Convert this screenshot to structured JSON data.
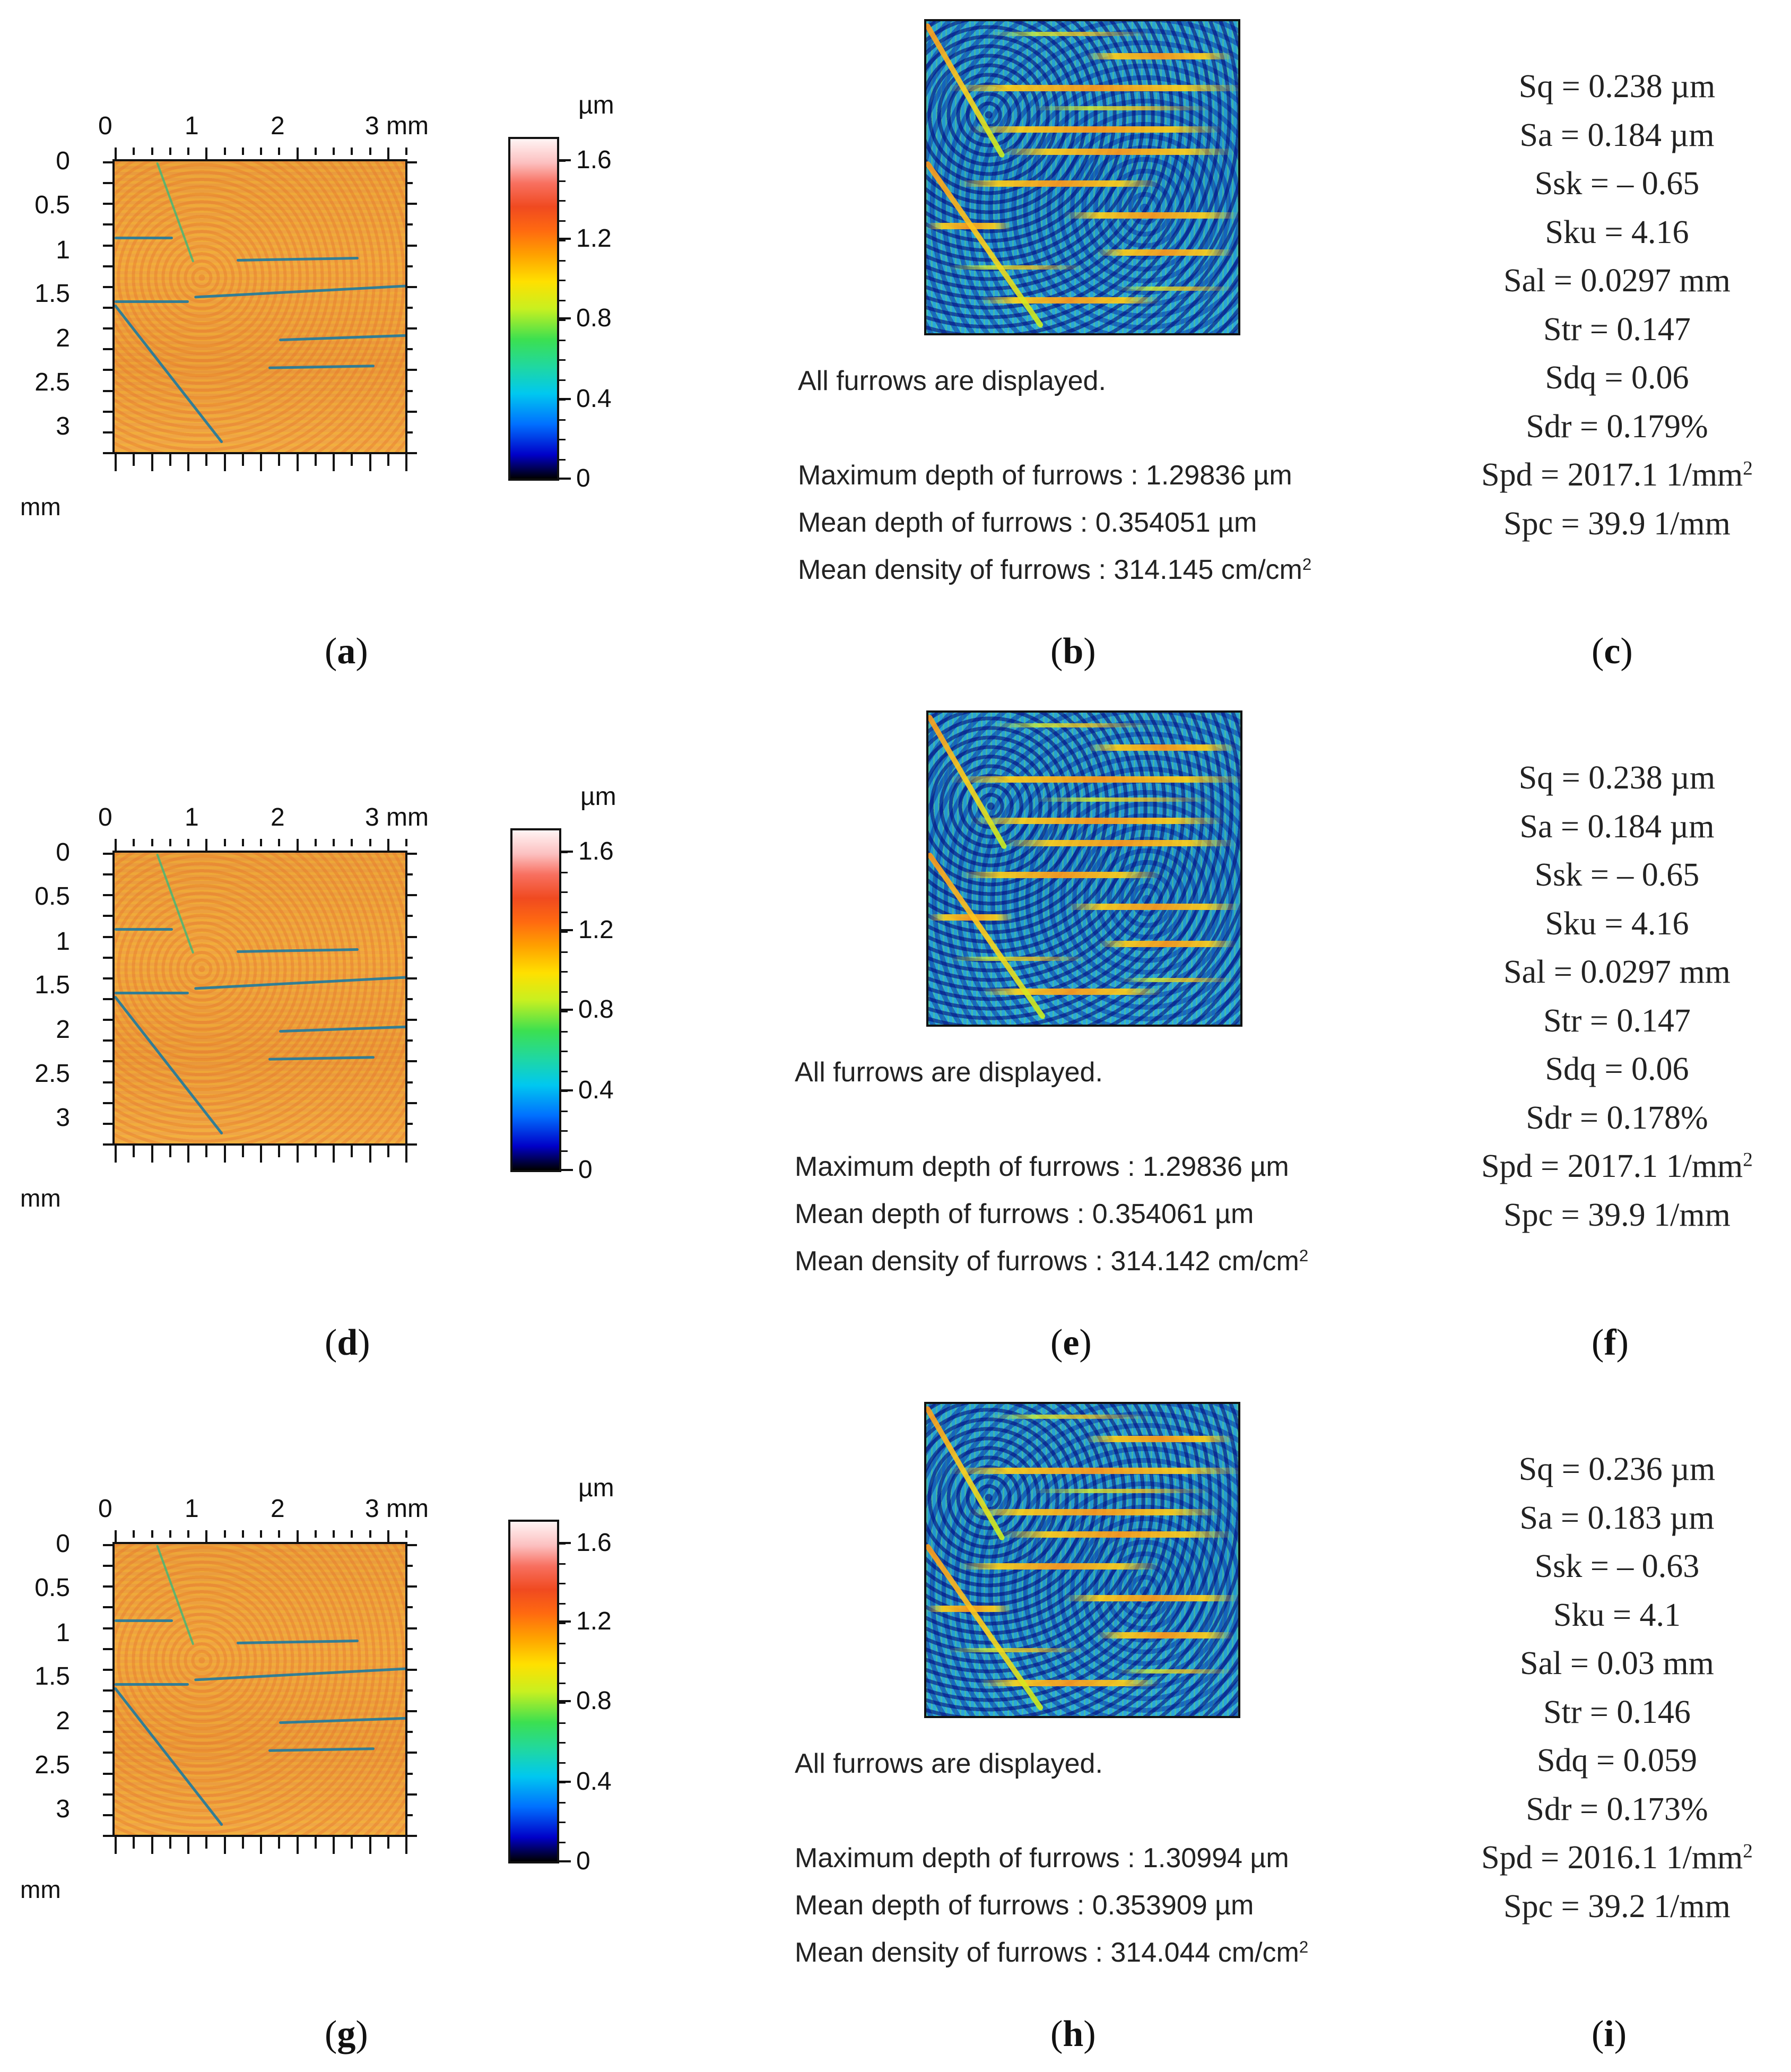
{
  "maps": [
    {
      "x_ticks": [
        "0",
        "1",
        "2",
        "3 mm"
      ],
      "y_ticks": [
        "0",
        "0.5",
        "1",
        "1.5",
        "2",
        "2.5",
        "3"
      ],
      "y_unit": "mm"
    },
    {
      "x_ticks": [
        "0",
        "1",
        "2",
        "3 mm"
      ],
      "y_ticks": [
        "0",
        "0.5",
        "1",
        "1.5",
        "2",
        "2.5",
        "3"
      ],
      "y_unit": "mm"
    },
    {
      "x_ticks": [
        "0",
        "1",
        "2",
        "3 mm"
      ],
      "y_ticks": [
        "0",
        "0.5",
        "1",
        "1.5",
        "2",
        "2.5",
        "3"
      ],
      "y_unit": "mm"
    }
  ],
  "colorbars": [
    {
      "unit": "µm",
      "ticks": [
        "1.6",
        "1.2",
        "0.8",
        "0.4",
        "0"
      ]
    },
    {
      "unit": "µm",
      "ticks": [
        "1.6",
        "1.2",
        "0.8",
        "0.4",
        "0"
      ]
    },
    {
      "unit": "µm",
      "ticks": [
        "1.6",
        "1.2",
        "0.8",
        "0.4",
        "0"
      ]
    }
  ],
  "furrows": [
    {
      "displayed": "All furrows are displayed.",
      "max_depth": "Maximum depth of furrows : 1.29836 µm",
      "mean_depth": "Mean depth of furrows : 0.354051 µm",
      "mean_density": "Mean density of furrows : 314.145 cm/cm",
      "density_sup": "2"
    },
    {
      "displayed": "All furrows are displayed.",
      "max_depth": "Maximum depth of furrows : 1.29836 µm",
      "mean_depth": "Mean depth of furrows : 0.354061 µm",
      "mean_density": "Mean density of furrows : 314.142 cm/cm",
      "density_sup": "2"
    },
    {
      "displayed": "All furrows are displayed.",
      "max_depth": "Maximum depth of furrows : 1.30994 µm",
      "mean_depth": "Mean depth of furrows : 0.353909 µm",
      "mean_density": "Mean density of furrows : 314.044 cm/cm",
      "density_sup": "2"
    }
  ],
  "params": [
    {
      "Sq": "Sq = 0.238 µm",
      "Sa": "Sa = 0.184 µm",
      "Ssk": "Ssk = – 0.65",
      "Sku": "Sku = 4.16",
      "Sal": "Sal = 0.0297 mm",
      "Str": "Str = 0.147",
      "Sdq": "Sdq = 0.06",
      "Sdr": "Sdr = 0.179%",
      "Spd": "Spd = 2017.1 1/mm",
      "Spd_sup": "2",
      "Spc": "Spc = 39.9 1/mm"
    },
    {
      "Sq": "Sq = 0.238 µm",
      "Sa": "Sa = 0.184 µm",
      "Ssk": "Ssk = – 0.65",
      "Sku": "Sku = 4.16",
      "Sal": "Sal = 0.0297 mm",
      "Str": "Str = 0.147",
      "Sdq": "Sdq = 0.06",
      "Sdr": "Sdr = 0.178%",
      "Spd": "Spd = 2017.1 1/mm",
      "Spd_sup": "2",
      "Spc": "Spc = 39.9 1/mm"
    },
    {
      "Sq": "Sq = 0.236 µm",
      "Sa": "Sa = 0.183 µm",
      "Ssk": "Ssk = – 0.63",
      "Sku": "Sku = 4.1",
      "Sal": "Sal = 0.03 mm",
      "Str": "Str = 0.146",
      "Sdq": "Sdq = 0.059",
      "Sdr": "Sdr = 0.173%",
      "Spd": "Spd = 2016.1 1/mm",
      "Spd_sup": "2",
      "Spc": "Spc = 39.2 1/mm"
    }
  ],
  "captions": [
    [
      "a",
      "b",
      "c"
    ],
    [
      "d",
      "e",
      "f"
    ],
    [
      "g",
      "h",
      "i"
    ]
  ]
}
